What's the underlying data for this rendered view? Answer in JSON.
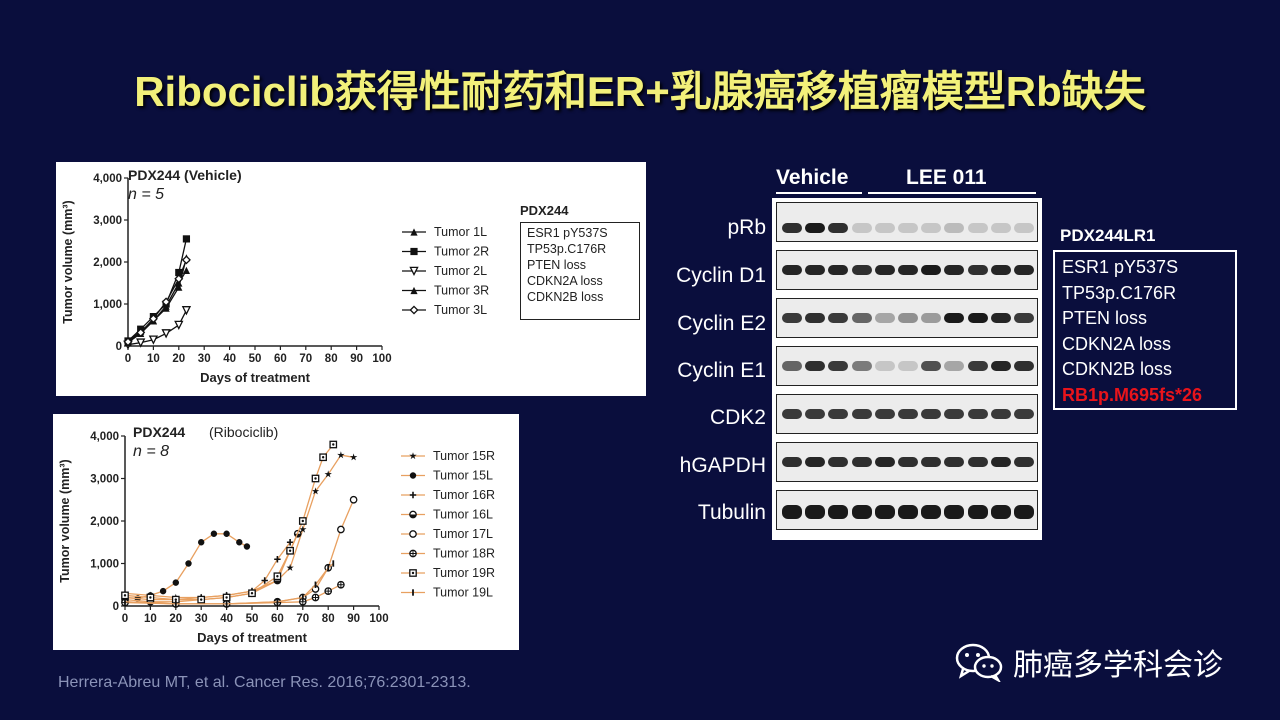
{
  "title": "Ribociclib获得性耐药和ER+乳腺癌移植瘤模型Rb缺失",
  "colors": {
    "background": "#0a0e3d",
    "title": "#f2f07a",
    "highlight": "#e8141b",
    "ribo_line": "#e8a060"
  },
  "chart_data": [
    {
      "type": "line",
      "title": "PDX244 (Vehicle)",
      "n_label": "n = 5",
      "xlabel": "Days of treatment",
      "ylabel": "Tumor volume (mm³)",
      "xlim": [
        0,
        100
      ],
      "ylim": [
        0,
        4000
      ],
      "xticks": [
        "0",
        "10",
        "20",
        "30",
        "40",
        "50",
        "60",
        "70",
        "80",
        "90",
        "100"
      ],
      "yticks": [
        "0",
        "1,000",
        "2,000",
        "3,000",
        "4,000"
      ],
      "legend_placement": "right",
      "series": [
        {
          "name": "Tumor 1L",
          "marker": "triangle-up",
          "x": [
            0,
            5,
            10,
            15,
            20,
            23
          ],
          "y": [
            100,
            350,
            600,
            900,
            1400,
            2100
          ]
        },
        {
          "name": "Tumor 2R",
          "marker": "square",
          "x": [
            0,
            5,
            10,
            15,
            20,
            23
          ],
          "y": [
            120,
            400,
            700,
            1000,
            1750,
            2550
          ]
        },
        {
          "name": "Tumor 2L",
          "marker": "triangle-down",
          "x": [
            0,
            5,
            10,
            15,
            20,
            23
          ],
          "y": [
            30,
            80,
            150,
            300,
            500,
            850
          ]
        },
        {
          "name": "Tumor 3R",
          "marker": "triangle-up-filled",
          "x": [
            0,
            5,
            10,
            15,
            20,
            23
          ],
          "y": [
            80,
            300,
            600,
            950,
            1500,
            1800
          ]
        },
        {
          "name": "Tumor 3L",
          "marker": "diamond",
          "x": [
            0,
            5,
            10,
            15,
            20,
            23
          ],
          "y": [
            100,
            320,
            650,
            1050,
            1600,
            2050
          ]
        }
      ]
    },
    {
      "type": "line",
      "title": "PDX244",
      "subtitle": "(Ribociclib)",
      "n_label": "n = 8",
      "xlabel": "Days of treatment",
      "ylabel": "Tumor volume (mm³)",
      "xlim": [
        0,
        100
      ],
      "ylim": [
        0,
        4000
      ],
      "xticks": [
        "0",
        "10",
        "20",
        "30",
        "40",
        "50",
        "60",
        "70",
        "80",
        "90",
        "100"
      ],
      "yticks": [
        "0",
        "1,000",
        "2,000",
        "3,000",
        "4,000"
      ],
      "legend_placement": "right",
      "series": [
        {
          "name": "Tumor 15R",
          "marker": "star",
          "x": [
            0,
            10,
            20,
            30,
            40,
            50,
            60,
            65,
            70,
            75,
            80,
            85,
            90
          ],
          "y": [
            300,
            250,
            200,
            200,
            250,
            350,
            600,
            900,
            1800,
            2700,
            3100,
            3550,
            3500
          ]
        },
        {
          "name": "Tumor 15L",
          "marker": "circle",
          "x": [
            0,
            5,
            10,
            15,
            20,
            25,
            30,
            35,
            40,
            45,
            48
          ],
          "y": [
            200,
            180,
            250,
            350,
            550,
            1000,
            1500,
            1700,
            1700,
            1500,
            1400
          ]
        },
        {
          "name": "Tumor 16R",
          "marker": "plus",
          "x": [
            0,
            10,
            20,
            30,
            40,
            50,
            55,
            60,
            65
          ],
          "y": [
            200,
            150,
            150,
            200,
            250,
            350,
            600,
            1100,
            1500
          ]
        },
        {
          "name": "Tumor 16L",
          "marker": "half-circle",
          "x": [
            0,
            10,
            20,
            30,
            40,
            50,
            60,
            65,
            68
          ],
          "y": [
            150,
            100,
            100,
            150,
            200,
            300,
            600,
            1300,
            1700
          ]
        },
        {
          "name": "Tumor 17L",
          "marker": "open-circle",
          "x": [
            0,
            20,
            40,
            60,
            70,
            75,
            80,
            85,
            90
          ],
          "y": [
            100,
            50,
            50,
            100,
            200,
            400,
            900,
            1800,
            2500
          ]
        },
        {
          "name": "Tumor 18R",
          "marker": "cross-circle",
          "x": [
            0,
            20,
            40,
            60,
            70,
            75,
            80,
            85
          ],
          "y": [
            80,
            50,
            50,
            80,
            100,
            200,
            350,
            500
          ]
        },
        {
          "name": "Tumor 19R",
          "marker": "square-dot",
          "x": [
            0,
            10,
            20,
            30,
            40,
            50,
            60,
            65,
            70,
            75,
            78,
            82
          ],
          "y": [
            250,
            200,
            150,
            150,
            200,
            300,
            700,
            1300,
            2000,
            3000,
            3500,
            3800
          ]
        },
        {
          "name": "Tumor 19L",
          "marker": "bar",
          "x": [
            0,
            20,
            40,
            60,
            70,
            75,
            80,
            82
          ],
          "y": [
            100,
            50,
            50,
            100,
            200,
            500,
            900,
            1000
          ]
        }
      ]
    }
  ],
  "vehicle_legend": {
    "title": "PDX244",
    "items": [
      "ESR1 pY537S",
      "TP53p.C176R",
      "PTEN loss",
      "CDKN2A loss",
      "CDKN2B loss"
    ]
  },
  "western_blot": {
    "header_vehicle": "Vehicle",
    "header_treated": "LEE 011",
    "rows": [
      "pRb",
      "Cyclin D1",
      "Cyclin E2",
      "Cyclin E1",
      "CDK2",
      "hGAPDH",
      "Tubulin"
    ]
  },
  "mutation_box": {
    "title": "PDX244LR1",
    "items": [
      "ESR1 pY537S",
      "TP53p.C176R",
      "PTEN loss",
      "CDKN2A loss",
      "CDKN2B loss"
    ],
    "highlight": "RB1p.M695fs*26"
  },
  "citation": "Herrera-Abreu MT, et al. Cancer Res. 2016;76:2301-2313.",
  "watermark": "肺癌多学科会诊"
}
